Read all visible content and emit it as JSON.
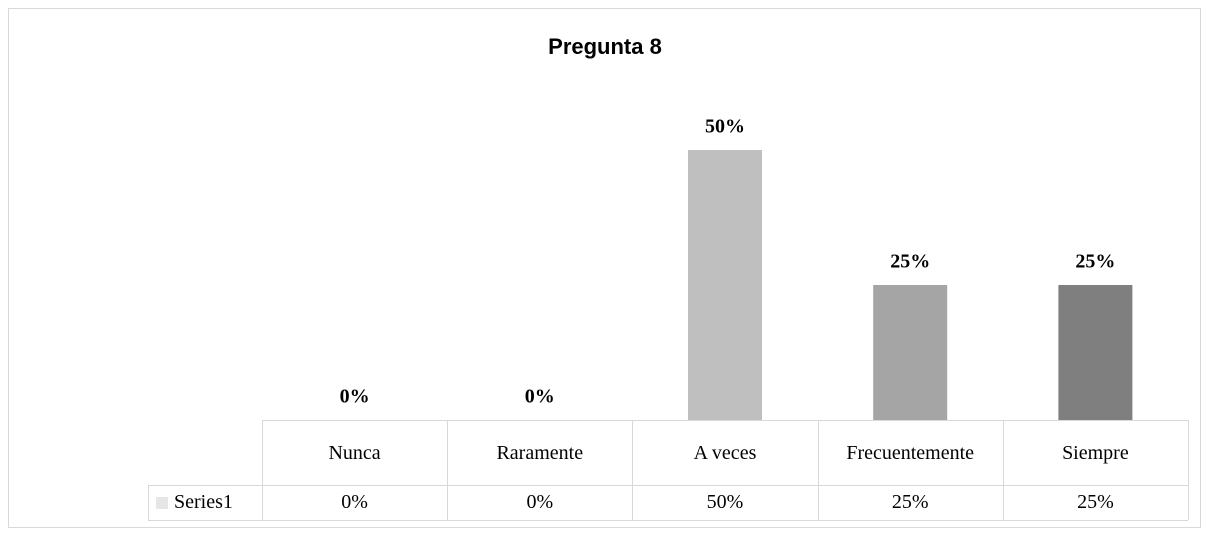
{
  "chart_data": {
    "type": "bar",
    "title": "Pregunta 8",
    "categories": [
      "Nunca",
      "Raramente",
      "A veces",
      "Frecuentemente",
      "Siempre"
    ],
    "series": [
      {
        "name": "Series1",
        "colors": [
          "#e6e6e6",
          "#d9d9d9",
          "#bfbfbf",
          "#a5a5a5",
          "#7f7f7f"
        ],
        "values": [
          0,
          0,
          50,
          25,
          25
        ],
        "value_labels": [
          "0%",
          "0%",
          "50%",
          "25%",
          "25%"
        ]
      }
    ],
    "data_table": true
  }
}
